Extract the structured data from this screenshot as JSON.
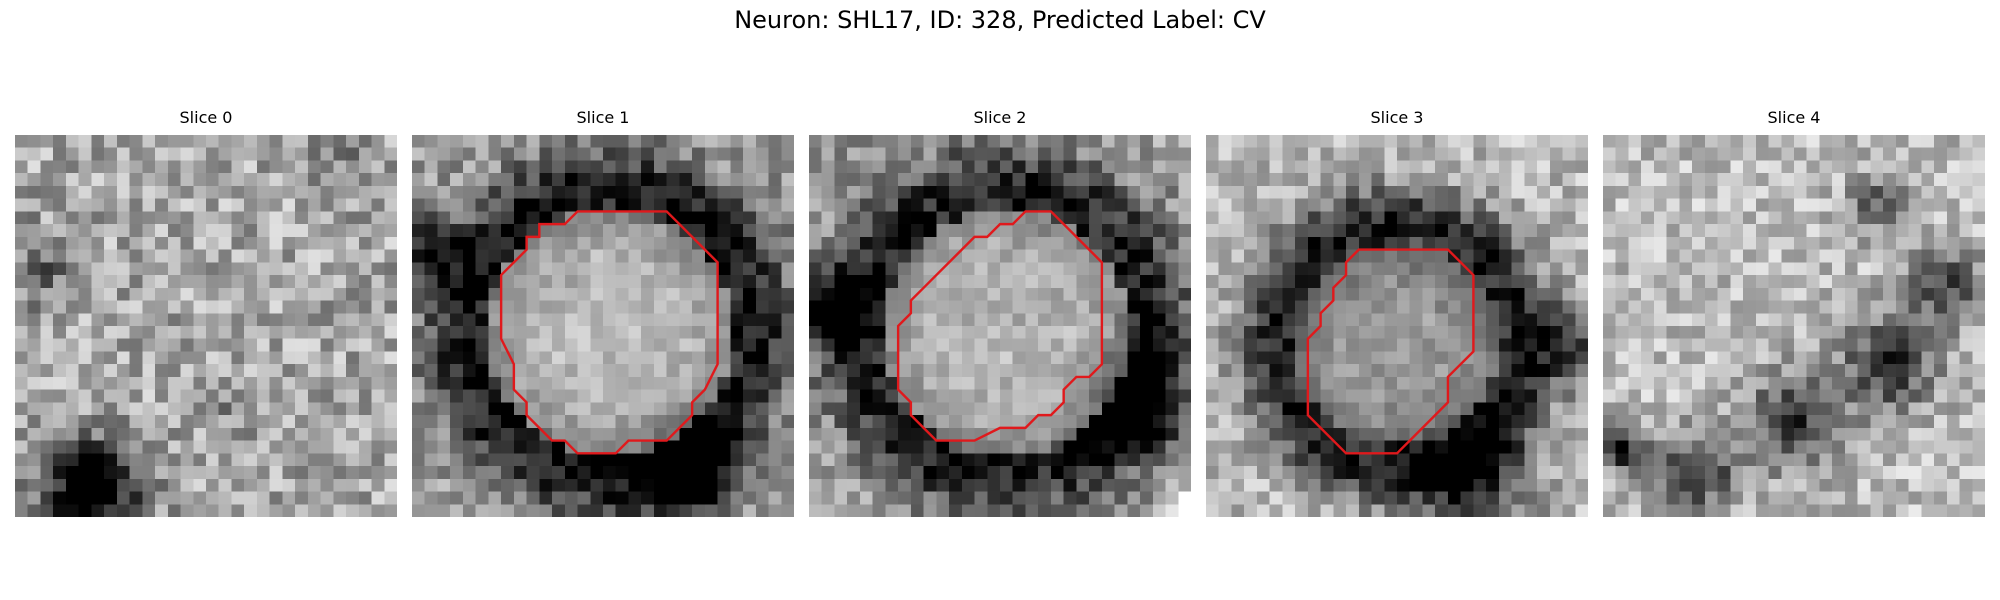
{
  "figure": {
    "title": "Neuron: SHL17, ID: 328, Predicted Label: CV"
  },
  "outline_color": "#e0191c",
  "slices": [
    {
      "title": "Slice 0",
      "has_outline": false,
      "dark_blobs": [
        [
          0.2,
          0.92,
          0.12,
          0.9
        ],
        [
          0.08,
          0.35,
          0.1,
          0.25
        ],
        [
          0.55,
          0.7,
          0.08,
          0.15
        ],
        [
          0.85,
          0.08,
          0.08,
          0.15
        ]
      ],
      "base_level": 0.66,
      "noise": 0.22,
      "seed": 11
    },
    {
      "title": "Slice 1",
      "has_outline": true,
      "outline": [
        [
          15,
          6
        ],
        [
          20,
          6
        ],
        [
          24,
          10
        ],
        [
          24,
          18
        ],
        [
          23,
          20
        ],
        [
          22,
          21
        ],
        [
          22,
          22
        ],
        [
          21,
          23
        ],
        [
          20,
          24
        ],
        [
          17,
          24
        ],
        [
          16,
          25
        ],
        [
          13,
          25
        ],
        [
          12,
          24
        ],
        [
          11,
          24
        ],
        [
          10,
          23
        ],
        [
          9,
          22
        ],
        [
          9,
          21
        ],
        [
          8,
          20
        ],
        [
          8,
          18
        ],
        [
          7,
          16
        ],
        [
          7,
          11
        ],
        [
          8,
          10
        ],
        [
          9,
          9
        ],
        [
          9,
          8
        ],
        [
          10,
          8
        ],
        [
          10,
          7
        ],
        [
          11,
          7
        ],
        [
          12,
          7
        ],
        [
          13,
          6
        ]
      ],
      "ring": [
        15.5,
        15.5,
        9.5,
        3.5,
        0.55
      ],
      "center_light": 0.82,
      "dark_blobs": [
        [
          0.72,
          0.88,
          0.12,
          0.7
        ],
        [
          0.05,
          0.3,
          0.08,
          0.5
        ]
      ],
      "base_level": 0.62,
      "noise": 0.2,
      "seed": 23
    },
    {
      "title": "Slice 2",
      "has_outline": true,
      "outline": [
        [
          17,
          6
        ],
        [
          19,
          6
        ],
        [
          21,
          8
        ],
        [
          22,
          9
        ],
        [
          23,
          10
        ],
        [
          23,
          18
        ],
        [
          22,
          19
        ],
        [
          21,
          19
        ],
        [
          20,
          20
        ],
        [
          20,
          21
        ],
        [
          19,
          22
        ],
        [
          18,
          22
        ],
        [
          17,
          23
        ],
        [
          15,
          23
        ],
        [
          13,
          24
        ],
        [
          10,
          24
        ],
        [
          9,
          23
        ],
        [
          8,
          22
        ],
        [
          8,
          21
        ],
        [
          7,
          20
        ],
        [
          7,
          15
        ],
        [
          8,
          14
        ],
        [
          8,
          13
        ],
        [
          9,
          12
        ],
        [
          10,
          11
        ],
        [
          11,
          10
        ],
        [
          12,
          9
        ],
        [
          13,
          8
        ],
        [
          14,
          8
        ],
        [
          15,
          7
        ],
        [
          16,
          7
        ]
      ],
      "ring": [
        15.5,
        15.5,
        9.5,
        3.5,
        0.5
      ],
      "center_light": 0.8,
      "dark_blobs": [
        [
          0.85,
          0.7,
          0.12,
          0.6
        ],
        [
          0.05,
          0.45,
          0.1,
          0.6
        ],
        [
          0.98,
          0.98,
          0.06,
          -0.5
        ]
      ],
      "base_level": 0.6,
      "noise": 0.2,
      "seed": 37
    },
    {
      "title": "Slice 3",
      "has_outline": true,
      "outline": [
        [
          12,
          9
        ],
        [
          19,
          9
        ],
        [
          21,
          11
        ],
        [
          21,
          17
        ],
        [
          20,
          18
        ],
        [
          19,
          19
        ],
        [
          19,
          21
        ],
        [
          18,
          22
        ],
        [
          17,
          23
        ],
        [
          16,
          24
        ],
        [
          15,
          25
        ],
        [
          11,
          25
        ],
        [
          9,
          23
        ],
        [
          8,
          22
        ],
        [
          8,
          16
        ],
        [
          9,
          15
        ],
        [
          9,
          14
        ],
        [
          10,
          13
        ],
        [
          10,
          12
        ],
        [
          11,
          11
        ],
        [
          11,
          10
        ]
      ],
      "ring": [
        15.0,
        16.5,
        8.0,
        3.0,
        0.6
      ],
      "center_light": 0.5,
      "dark_blobs": [
        [
          0.7,
          0.9,
          0.15,
          0.5
        ],
        [
          0.95,
          0.55,
          0.1,
          0.45
        ]
      ],
      "base_level": 0.72,
      "noise": 0.18,
      "seed": 51
    },
    {
      "title": "Slice 4",
      "has_outline": false,
      "dark_blobs": [
        [
          0.5,
          0.75,
          0.12,
          0.55
        ],
        [
          0.75,
          0.6,
          0.12,
          0.55
        ],
        [
          0.25,
          0.88,
          0.1,
          0.55
        ],
        [
          0.9,
          0.4,
          0.1,
          0.45
        ],
        [
          0.05,
          0.82,
          0.06,
          0.7
        ],
        [
          0.72,
          0.18,
          0.08,
          0.35
        ]
      ],
      "base_level": 0.74,
      "noise": 0.18,
      "seed": 67
    }
  ]
}
